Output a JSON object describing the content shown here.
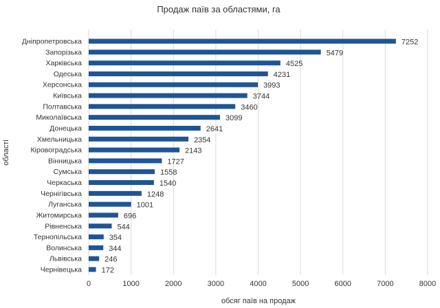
{
  "chart_data": {
    "type": "bar",
    "orientation": "horizontal",
    "title": "Продаж паїв за областями, га",
    "xlabel": "обсяг паїв на продаж",
    "ylabel": "області",
    "xlim": [
      0,
      8000
    ],
    "xticks": [
      0,
      1000,
      2000,
      3000,
      4000,
      5000,
      6000,
      7000,
      8000
    ],
    "grid": "vertical",
    "bar_color": "#1f5596",
    "categories": [
      "Дніпропетровська",
      "Запорізька",
      "Харківська",
      "Одеська",
      "Херсонська",
      "Київська",
      "Полтавська",
      "Миколаївська",
      "Донецька",
      "Хмельницька",
      "Кіровоградська",
      "Вінницька",
      "Сумська",
      "Черкаська",
      "Чернігівська",
      "Луганська",
      "Житомирська",
      "Рівненська",
      "Тернопільська",
      "Волинська",
      "Львівська",
      "Чернівецька"
    ],
    "values": [
      7252,
      5479,
      4525,
      4231,
      3993,
      3744,
      3460,
      3099,
      2641,
      2354,
      2143,
      1727,
      1558,
      1540,
      1248,
      1001,
      696,
      544,
      354,
      344,
      246,
      172
    ]
  }
}
